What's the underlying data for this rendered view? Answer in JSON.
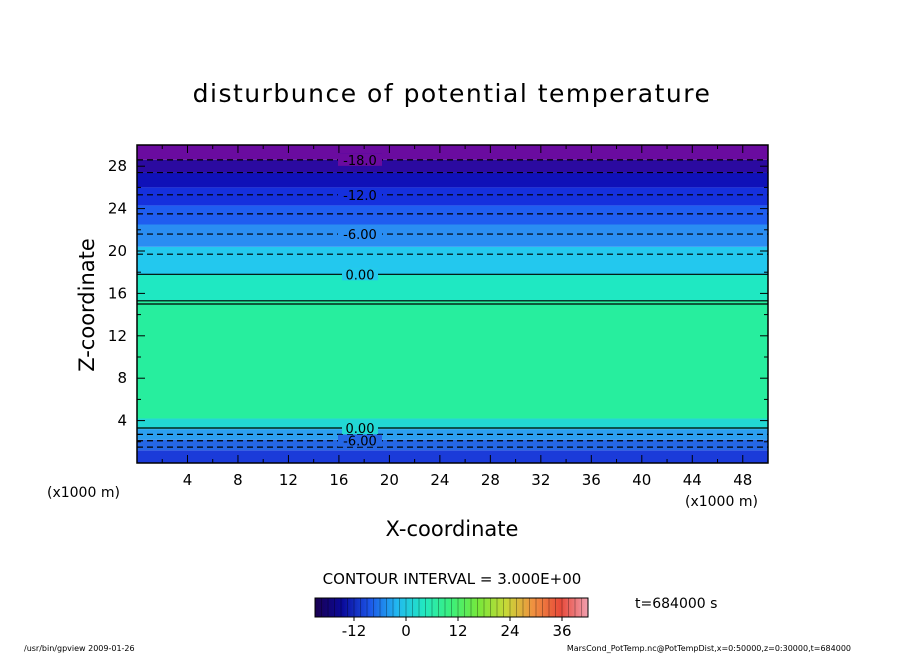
{
  "chart_data": {
    "type": "heatmap",
    "title": "disturbunce of potential temperature",
    "xlabel": "X-coordinate",
    "ylabel": "Z-coordinate",
    "x_unit_left": "(x1000 m)",
    "x_unit_right": "(x1000 m)",
    "xlim": [
      0,
      50
    ],
    "ylim": [
      0,
      30
    ],
    "xticks": [
      "4",
      "8",
      "12",
      "16",
      "20",
      "24",
      "28",
      "32",
      "36",
      "40",
      "44",
      "48"
    ],
    "yticks": [
      "4",
      "8",
      "12",
      "16",
      "20",
      "24",
      "28"
    ],
    "contour_interval_text": "CONTOUR INTERVAL = 3.000E+00",
    "time_text": "t=684000 s",
    "colorbar_ticks": [
      "-12",
      "0",
      "12",
      "24",
      "36"
    ],
    "colorbar_range": [
      -21,
      42
    ],
    "color_bands": [
      {
        "z0": 0,
        "z1": 1.2,
        "color": "#1b3bd9"
      },
      {
        "z0": 1.2,
        "z1": 2.2,
        "color": "#2567e6"
      },
      {
        "z0": 2.2,
        "z1": 3.2,
        "color": "#2c9ff0"
      },
      {
        "z0": 3.2,
        "z1": 4.2,
        "color": "#22d8d4"
      },
      {
        "z0": 4.2,
        "z1": 15.3,
        "color": "#27ee9e"
      },
      {
        "z0": 15.3,
        "z1": 17.8,
        "color": "#1fe8c2"
      },
      {
        "z0": 17.8,
        "z1": 20.4,
        "color": "#23c8ee"
      },
      {
        "z0": 20.4,
        "z1": 22.5,
        "color": "#2a8df2"
      },
      {
        "z0": 22.5,
        "z1": 24.3,
        "color": "#1f5df0"
      },
      {
        "z0": 24.3,
        "z1": 26.0,
        "color": "#1530dd"
      },
      {
        "z0": 26.0,
        "z1": 27.4,
        "color": "#0f11b8"
      },
      {
        "z0": 27.4,
        "z1": 28.6,
        "color": "#2b0aa0"
      },
      {
        "z0": 28.6,
        "z1": 30.0,
        "color": "#6a0b9f"
      }
    ],
    "contours": [
      {
        "level": "-18.0",
        "z": 28.6,
        "dashed": true,
        "label": true
      },
      {
        "level": "-15.0",
        "z": 27.4,
        "dashed": true,
        "label": false
      },
      {
        "level": "-12.0",
        "z": 25.3,
        "dashed": true,
        "label": true
      },
      {
        "level": "-9.00",
        "z": 23.5,
        "dashed": true,
        "label": false
      },
      {
        "level": "-6.00",
        "z": 21.6,
        "dashed": true,
        "label": true
      },
      {
        "level": "-3.00",
        "z": 19.7,
        "dashed": true,
        "label": false
      },
      {
        "level": "0.00",
        "z": 17.8,
        "dashed": false,
        "label": true
      },
      {
        "level": "3.00",
        "z": 15.3,
        "dashed": false,
        "label": false
      },
      {
        "level": "3.00",
        "z": 15.0,
        "dashed": false,
        "label": false
      },
      {
        "level": "0.00",
        "z": 3.3,
        "dashed": false,
        "label": true
      },
      {
        "level": "-3.00",
        "z": 2.7,
        "dashed": true,
        "label": false
      },
      {
        "level": "-6.00",
        "z": 2.1,
        "dashed": true,
        "label": true
      },
      {
        "level": "-9.00",
        "z": 1.5,
        "dashed": true,
        "label": false
      }
    ]
  },
  "footer": {
    "left": "/usr/bin/gpview   2009-01-26",
    "right": "MarsCond_PotTemp.nc@PotTempDist,x=0:50000,z=0:30000,t=684000"
  },
  "colorbar_stops": [
    "#1a0050",
    "#0a0a9a",
    "#1c55e8",
    "#22b8f0",
    "#22e8c0",
    "#3cf07a",
    "#78e83a",
    "#c8d838",
    "#f09040",
    "#e84a3a",
    "#f0a0b0"
  ]
}
